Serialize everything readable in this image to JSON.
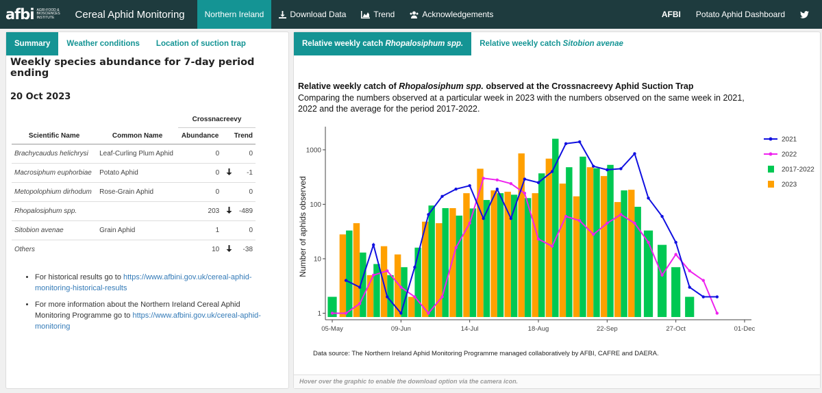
{
  "header": {
    "logo_word": "afbi",
    "logo_sub": "Agri-Food & Biosciences Institute",
    "brand": "Cereal Aphid Monitoring",
    "nav": [
      {
        "label": "Northern Ireland",
        "icon": "none"
      },
      {
        "label": "Download Data",
        "icon": "download-icon"
      },
      {
        "label": "Trend",
        "icon": "area-chart-icon"
      },
      {
        "label": "Acknowledgements",
        "icon": "users-icon"
      }
    ],
    "right_afbi": "AFBI",
    "right_potato": "Potato Aphid Dashboard",
    "right_icon": "twitter-icon"
  },
  "left": {
    "tabs": [
      "Summary",
      "Weather conditions",
      "Location of suction trap"
    ],
    "heading": "Weekly species abundance for 7-day period ending",
    "date": "20 Oct 2023",
    "table": {
      "group": "Crossnacreevy",
      "cols": [
        "Scientific Name",
        "Common Name",
        "Abundance",
        "Trend"
      ],
      "rows": [
        {
          "sci": "Brachycaudus helichrysi",
          "common": "Leaf-Curling Plum Aphid",
          "abundance": "0",
          "arrow": "",
          "trend": "0"
        },
        {
          "sci": "Macrosiphum euphorbiae",
          "common": "Potato Aphid",
          "abundance": "0",
          "arrow": "down",
          "trend": "-1"
        },
        {
          "sci": "Metopolophium dirhodum",
          "common": "Rose-Grain Aphid",
          "abundance": "0",
          "arrow": "",
          "trend": "0"
        },
        {
          "sci": "Rhopalosiphum spp.",
          "common": "",
          "abundance": "203",
          "arrow": "down",
          "trend": "-489"
        },
        {
          "sci": "Sitobion avenae",
          "common": "Grain Aphid",
          "abundance": "1",
          "arrow": "",
          "trend": "0"
        },
        {
          "sci": "Others",
          "common": "",
          "abundance": "10",
          "arrow": "down",
          "trend": "-38"
        }
      ]
    },
    "links": [
      {
        "pre": "For historical results go to ",
        "url": "https://www.afbini.gov.uk/cereal-aphid-monitoring-historical-results",
        "post": ""
      },
      {
        "pre": "For more information about the Northern Ireland Cereal Aphid Monitoring Programme go to ",
        "url": "https://www.afbini.gov.uk/cereal-aphid-monitoring",
        "post": ""
      }
    ]
  },
  "right": {
    "tab1_pre": "Relative weekly catch ",
    "tab1_species": "Rhopalosiphum spp.",
    "tab2_pre": "Relative weekly catch ",
    "tab2_species": "Sitobion avenae",
    "title_pre": "Relative weekly catch of ",
    "title_species": "Rhopalosiphum spp.",
    "title_post": " observed at the Crossnacreevy Aphid Suction Trap",
    "subtitle": "Comparing the numbers observed at a particular week in 2023 with the numbers observed on the same week in 2021, 2022 and the average for the period 2017-2022.",
    "data_source": "Data source: The Northern Ireland Aphid Monitoring Programme managed collaboratively by AFBI, CAFRE and DAERA.",
    "footer": "Hover over the graphic to enable the download option via the camera icon."
  },
  "chart_data": {
    "type": "bar",
    "ylabel": "Number of aphids observed",
    "yscale": "log",
    "yticks": [
      1,
      10,
      100,
      1000
    ],
    "xticks": [
      "05-May",
      "09-Jun",
      "14-Jul",
      "18-Aug",
      "22-Sep",
      "27-Oct",
      "01-Dec"
    ],
    "weeks": 31,
    "legend_position": "right",
    "colors": {
      "y2021": "#1010e0",
      "y2022": "#ee22ee",
      "avg": "#00c853",
      "y2023": "#ffa000"
    },
    "series": [
      {
        "name": "2021",
        "kind": "line",
        "values": [
          null,
          4,
          3,
          18,
          2,
          1,
          7,
          65,
          140,
          190,
          220,
          55,
          190,
          55,
          290,
          250,
          400,
          1300,
          1400,
          500,
          430,
          450,
          850,
          130,
          60,
          20,
          3,
          2,
          2,
          null,
          null
        ]
      },
      {
        "name": "2022",
        "kind": "line",
        "values": [
          1,
          1,
          1.5,
          5,
          6,
          3,
          2,
          1,
          2,
          16,
          45,
          300,
          280,
          240,
          160,
          23,
          17,
          60,
          50,
          28,
          45,
          65,
          45,
          20,
          5,
          12,
          6,
          4,
          1,
          null,
          null
        ]
      },
      {
        "name": "2017-2022",
        "kind": "bar",
        "values": [
          2,
          33,
          13,
          8,
          5,
          7,
          16,
          95,
          85,
          62,
          84,
          120,
          160,
          150,
          130,
          370,
          1600,
          480,
          750,
          460,
          530,
          180,
          90,
          33,
          18,
          7,
          2,
          null,
          null,
          null,
          null
        ]
      },
      {
        "name": "2023",
        "kind": "bar",
        "values": [
          null,
          28,
          45,
          5,
          17,
          12,
          2,
          48,
          45,
          85,
          160,
          450,
          180,
          170,
          860,
          160,
          690,
          240,
          140,
          480,
          330,
          110,
          185,
          null,
          null,
          null,
          null,
          null,
          null,
          null,
          null
        ]
      }
    ]
  }
}
